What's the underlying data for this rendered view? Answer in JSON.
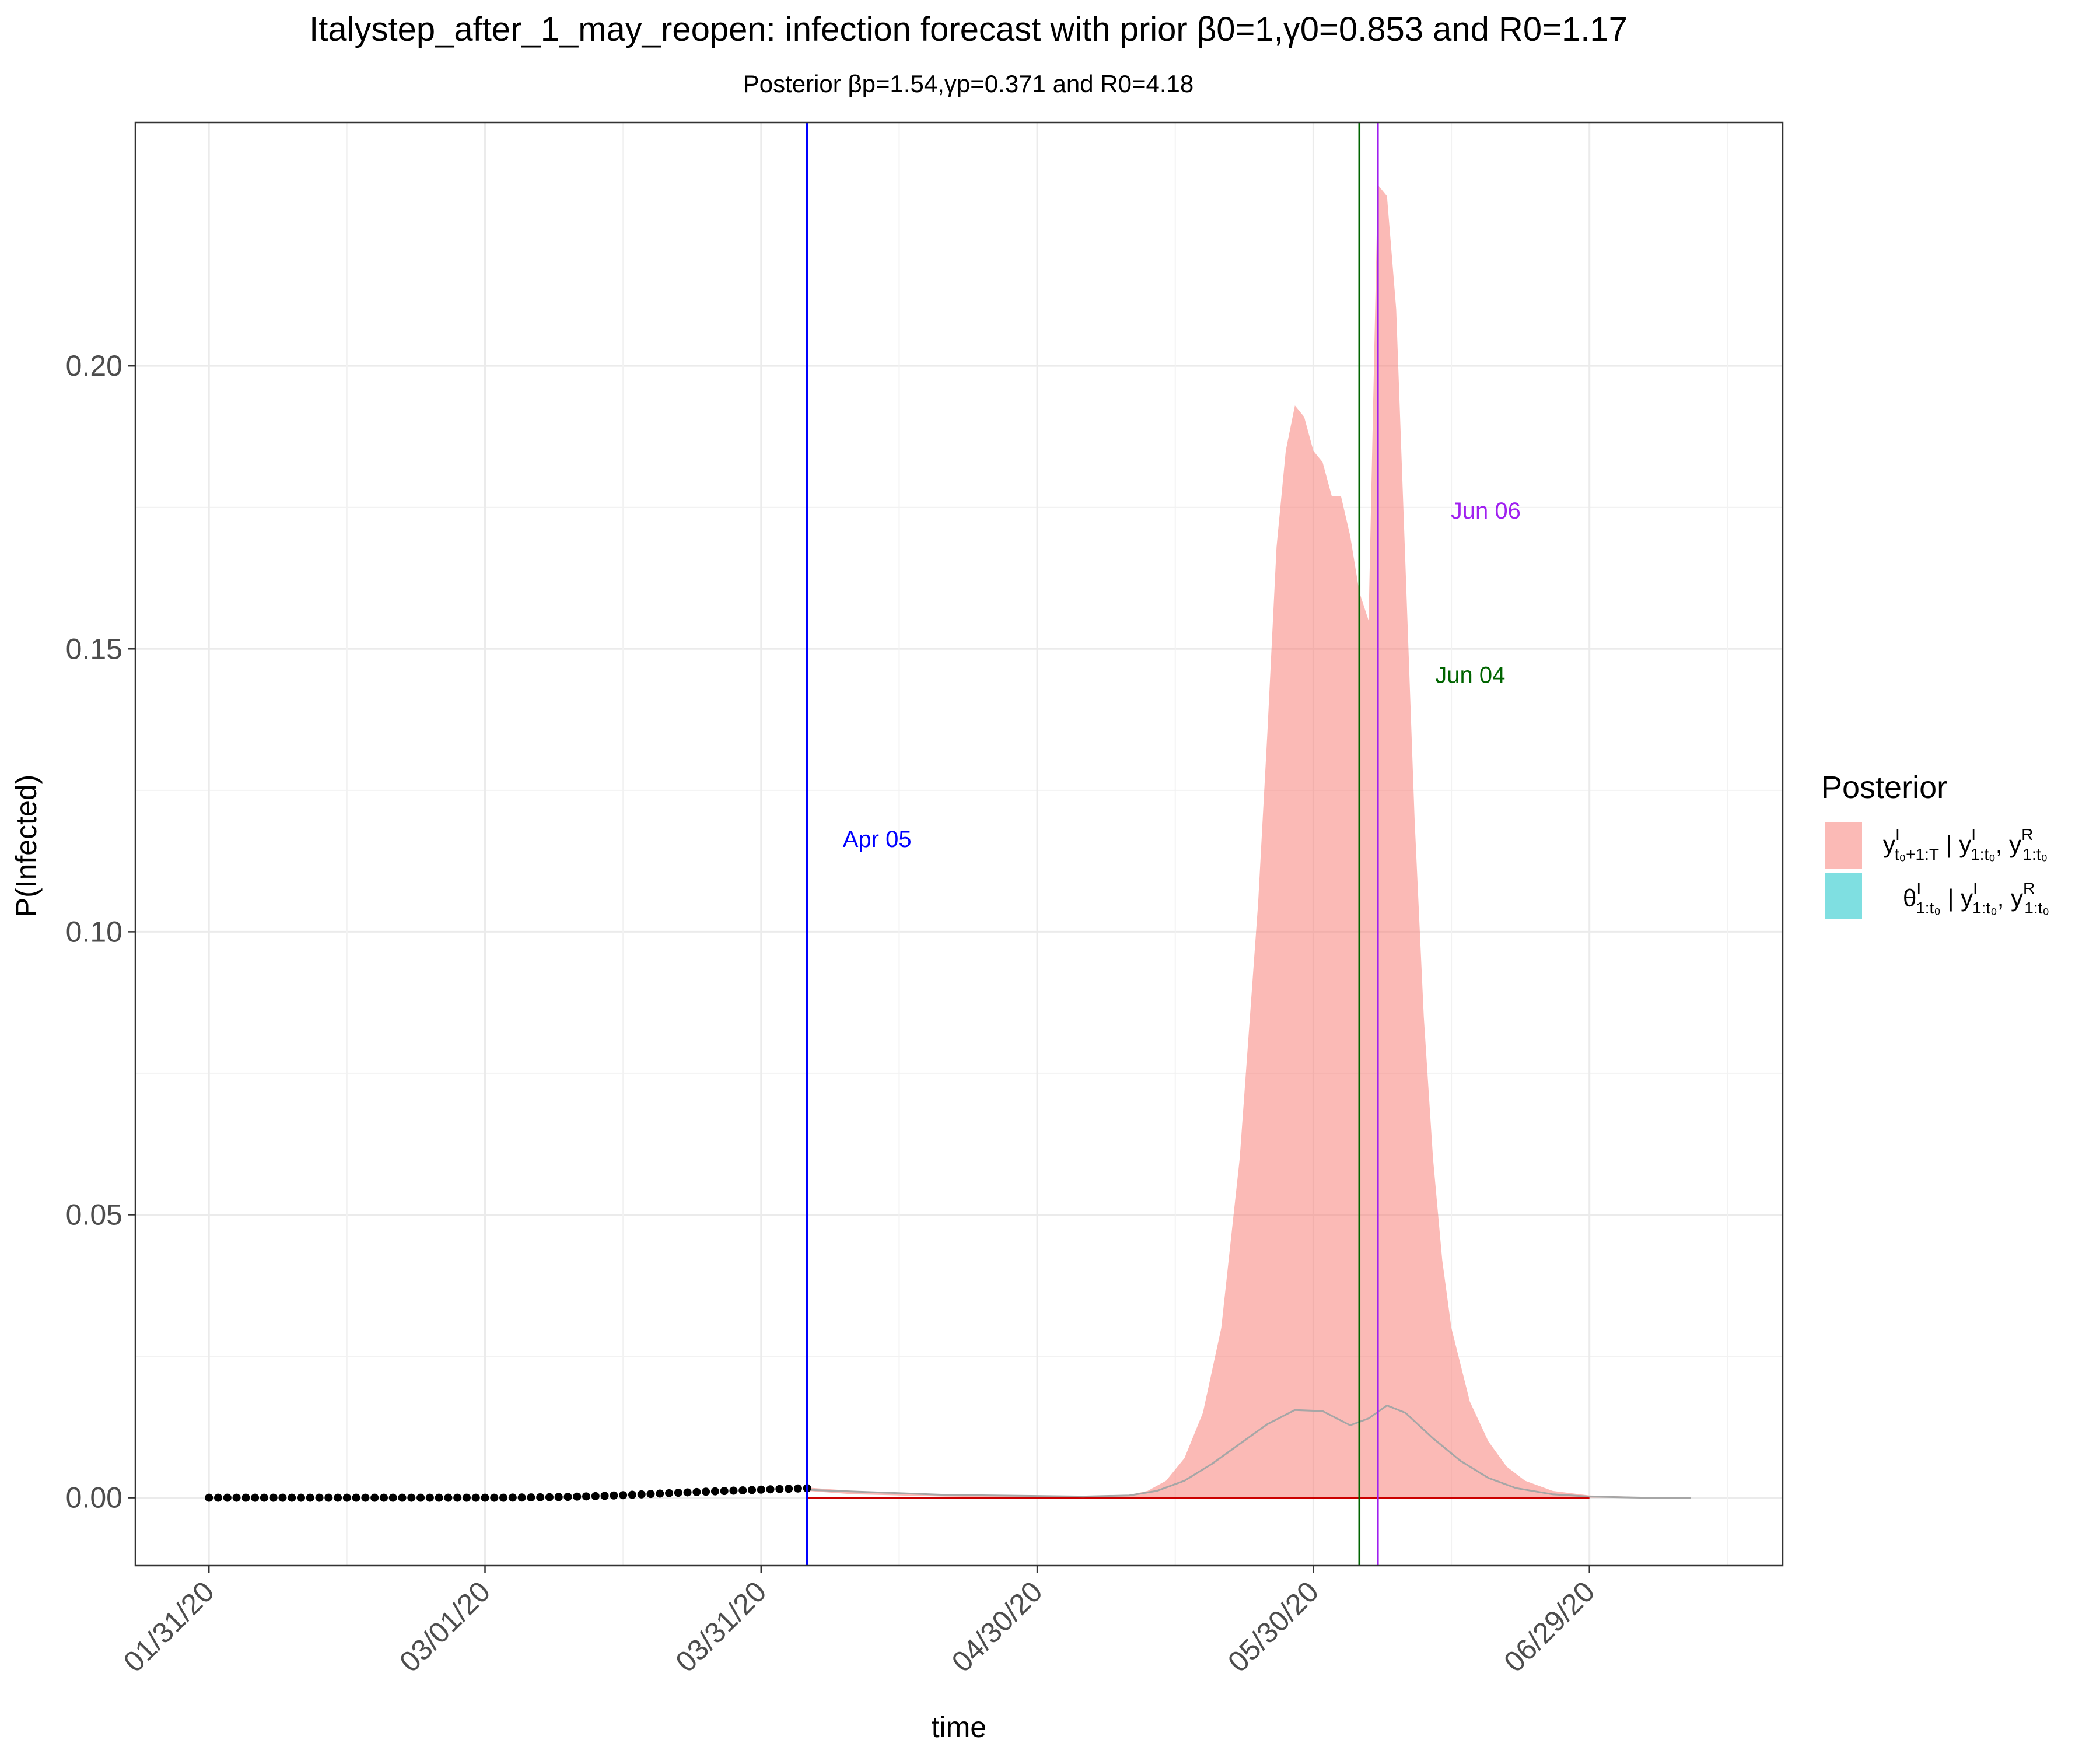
{
  "chart_data": {
    "type": "area",
    "title": "Italystep_after_1_may_reopen: infection forecast with prior β0=1,γ0=0.853 and R0=1.17",
    "subtitle": "Posterior βp=1.54,γp=0.371 and R0=4.18",
    "xlabel": "time",
    "ylabel": "P(Infected)",
    "x_ticks": [
      "01/31/20",
      "03/01/20",
      "03/31/20",
      "04/30/20",
      "05/30/20",
      "06/29/20"
    ],
    "x_tick_days": [
      0,
      30,
      60,
      90,
      120,
      150
    ],
    "y_ticks": [
      "0.00",
      "0.05",
      "0.10",
      "0.15",
      "0.20"
    ],
    "y_tick_values": [
      0,
      0.05,
      0.1,
      0.15,
      0.2
    ],
    "xlim": [
      "01/23/20",
      "07/20/20"
    ],
    "ylim": [
      -0.012,
      0.243
    ],
    "grid": true,
    "legend": {
      "title": "Posterior",
      "position": "right",
      "entries": [
        {
          "label": "y^I_{t0+1:T} | y^I_{1:t0}, y^R_{1:t0}",
          "color": "#F8766D"
        },
        {
          "label": "θ^I_{1:t0} | y^I_{1:t0}, y^R_{1:t0}",
          "color": "#00BFC4"
        }
      ]
    },
    "vlines": [
      {
        "date": "04/05/20",
        "label": "Apr 05",
        "color": "#0000FF"
      },
      {
        "date": "06/04/20",
        "label": "Jun 04",
        "color": "#006400"
      },
      {
        "date": "06/06/20",
        "label": "Jun 06",
        "color": "#A020F0"
      }
    ],
    "observed_points": {
      "color": "#000000",
      "from": "01/31/20",
      "to": "04/05/20",
      "values": [
        0,
        0,
        0,
        0,
        0,
        0,
        0,
        0,
        0,
        0,
        0,
        0,
        0,
        0,
        0,
        0,
        0,
        0,
        0,
        0,
        0,
        0,
        0,
        0,
        0,
        0,
        0,
        0,
        0,
        0,
        0,
        0,
        0,
        2e-05,
        3e-05,
        5e-05,
        7e-05,
        9e-05,
        0.00012,
        0.00015,
        0.00019,
        0.00023,
        0.00028,
        0.00033,
        0.00039,
        0.00045,
        0.00052,
        0.00059,
        0.00066,
        0.00073,
        0.0008,
        0.00087,
        0.00094,
        0.001,
        0.00106,
        0.00112,
        0.00118,
        0.00124,
        0.0013,
        0.00136,
        0.00142,
        0.00148,
        0.00153,
        0.00158,
        0.00163,
        0.00168
      ]
    },
    "forecast_band": {
      "color": "#F8766D",
      "dates": [
        "04/05/20",
        "04/10/20",
        "04/15/20",
        "04/20/20",
        "04/25/20",
        "04/30/20",
        "05/05/20",
        "05/10/20",
        "05/12/20",
        "05/14/20",
        "05/16/20",
        "05/18/20",
        "05/20/20",
        "05/22/20",
        "05/24/20",
        "05/25/20",
        "05/26/20",
        "05/27/20",
        "05/28/20",
        "05/29/20",
        "05/30/20",
        "05/31/20",
        "06/01/20",
        "06/02/20",
        "06/03/20",
        "06/04/20",
        "06/05/20",
        "06/06/20",
        "06/07/20",
        "06/08/20",
        "06/09/20",
        "06/10/20",
        "06/11/20",
        "06/12/20",
        "06/13/20",
        "06/14/20",
        "06/16/20",
        "06/18/20",
        "06/20/20",
        "06/22/20",
        "06/25/20",
        "06/29/20",
        "07/05/20",
        "07/10/20"
      ],
      "upper": [
        0.0018,
        0.0012,
        0.0009,
        0.0006,
        0.0004,
        0.0003,
        0.0003,
        0.0005,
        0.0012,
        0.003,
        0.007,
        0.015,
        0.03,
        0.06,
        0.105,
        0.135,
        0.168,
        0.185,
        0.193,
        0.191,
        0.185,
        0.183,
        0.177,
        0.177,
        0.17,
        0.16,
        0.155,
        0.232,
        0.23,
        0.21,
        0.165,
        0.12,
        0.085,
        0.06,
        0.042,
        0.03,
        0.017,
        0.01,
        0.0055,
        0.003,
        0.0012,
        0.0004,
        0.0001,
        0
      ],
      "lower": [
        0.0012,
        0.0006,
        0.0004,
        0.0002,
        0.0001,
        0,
        0,
        0,
        0,
        0,
        0,
        0,
        0,
        0,
        0,
        0,
        0,
        0,
        0,
        0,
        0,
        0,
        0,
        0,
        0,
        0,
        0,
        0,
        0,
        0,
        0,
        0,
        0,
        0,
        0,
        0,
        0,
        0,
        0,
        0,
        0,
        0,
        0,
        0
      ]
    },
    "mean_line": {
      "color": "#A6A6A6",
      "dates": [
        "04/05/20",
        "04/20/20",
        "05/05/20",
        "05/10/20",
        "05/13/20",
        "05/16/20",
        "05/19/20",
        "05/22/20",
        "05/25/20",
        "05/28/20",
        "05/31/20",
        "06/03/20",
        "06/05/20",
        "06/07/20",
        "06/09/20",
        "06/12/20",
        "06/15/20",
        "06/18/20",
        "06/21/20",
        "06/25/20",
        "06/29/20",
        "07/05/20",
        "07/10/20"
      ],
      "values": [
        0.0014,
        0.0005,
        0.0002,
        0.0004,
        0.0012,
        0.003,
        0.006,
        0.0095,
        0.013,
        0.0155,
        0.0153,
        0.0128,
        0.014,
        0.0163,
        0.015,
        0.0105,
        0.0065,
        0.0035,
        0.0017,
        0.0006,
        0.0002,
        0,
        0
      ]
    },
    "median_line": {
      "color": "#CC0000",
      "from": "04/05/20",
      "to": "06/29/20",
      "value": 0
    }
  }
}
